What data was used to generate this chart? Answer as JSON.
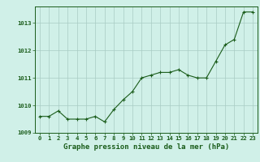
{
  "x": [
    0,
    1,
    2,
    3,
    4,
    5,
    6,
    7,
    8,
    9,
    10,
    11,
    12,
    13,
    14,
    15,
    16,
    17,
    18,
    19,
    20,
    21,
    22,
    23
  ],
  "y": [
    1009.6,
    1009.6,
    1009.8,
    1009.5,
    1009.5,
    1009.5,
    1009.6,
    1009.4,
    1009.85,
    1010.2,
    1010.5,
    1011.0,
    1011.1,
    1011.2,
    1011.2,
    1011.3,
    1011.1,
    1011.0,
    1011.0,
    1011.6,
    1012.2,
    1012.4,
    1013.4,
    1013.4
  ],
  "line_color": "#1a5c1a",
  "marker_color": "#1a5c1a",
  "bg_color": "#d0f0e8",
  "grid_color": "#a8ccc4",
  "xlabel": "Graphe pression niveau de la mer (hPa)",
  "xlabel_color": "#1a5c1a",
  "tick_color": "#1a5c1a",
  "ylim": [
    1009.0,
    1013.6
  ],
  "yticks": [
    1009,
    1010,
    1011,
    1012,
    1013
  ],
  "xticks": [
    0,
    1,
    2,
    3,
    4,
    5,
    6,
    7,
    8,
    9,
    10,
    11,
    12,
    13,
    14,
    15,
    16,
    17,
    18,
    19,
    20,
    21,
    22,
    23
  ],
  "xlabel_fontsize": 6.5,
  "tick_fontsize": 5.2
}
